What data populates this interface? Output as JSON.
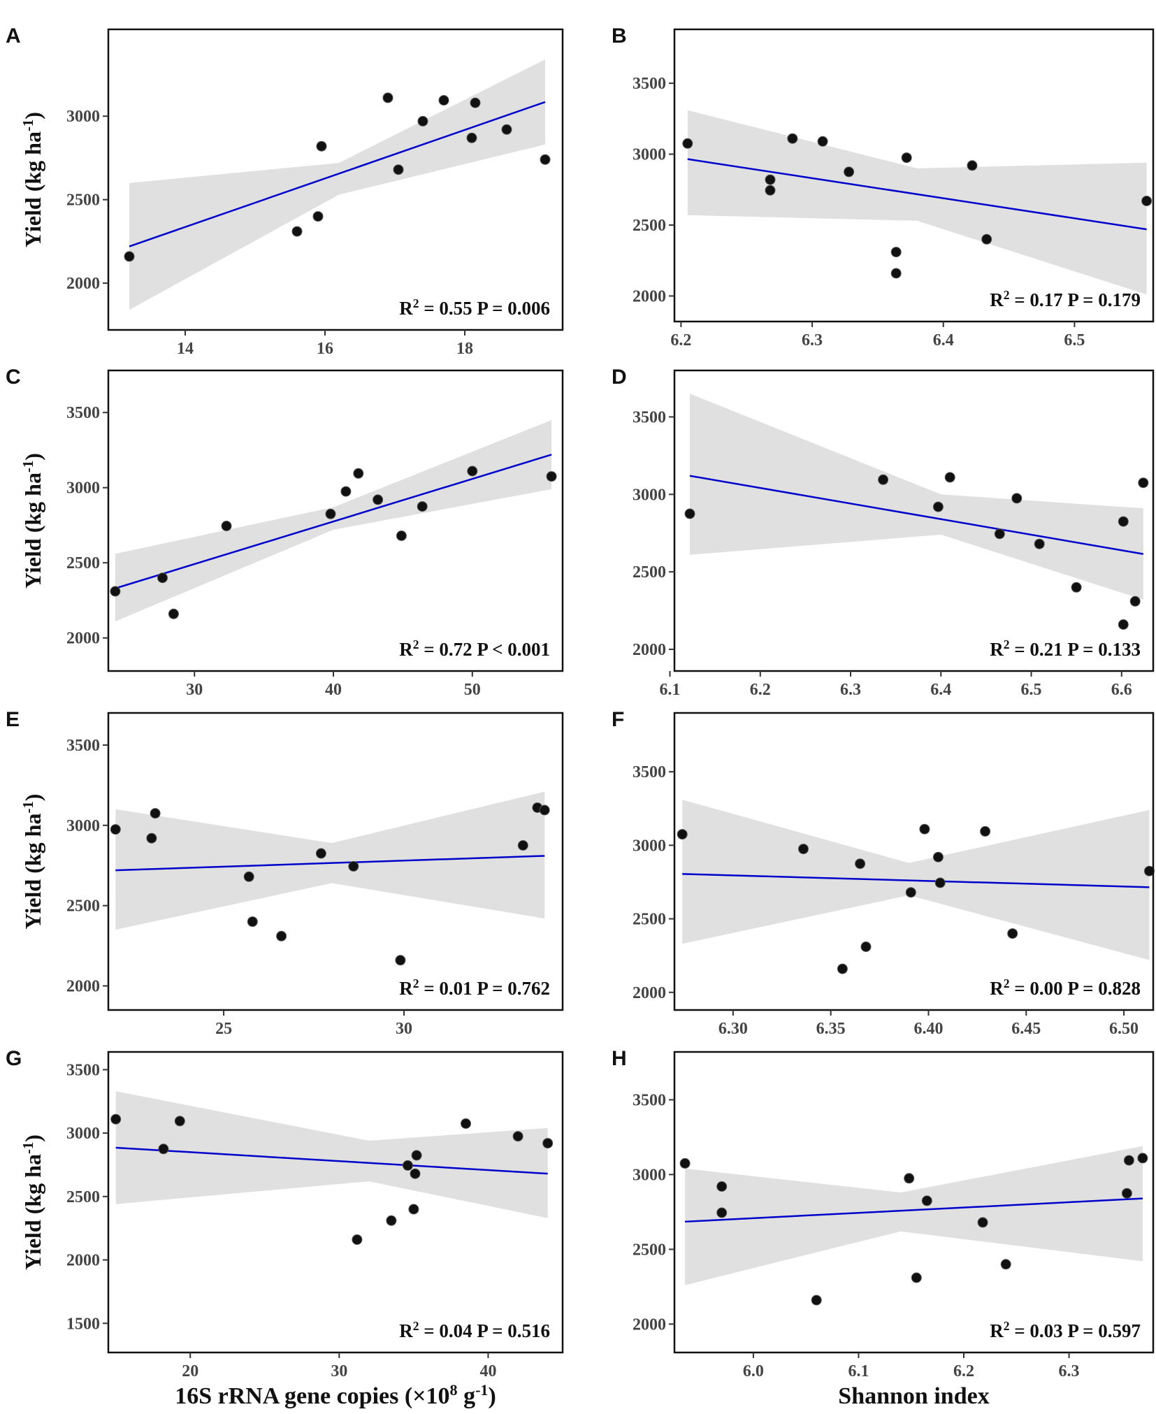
{
  "figure": {
    "panels_letters": [
      "A",
      "B",
      "C",
      "D",
      "E",
      "F",
      "G",
      "H"
    ],
    "y_axis_label": "Yield (kg ha",
    "y_axis_label_sup": "-1",
    "y_axis_label_end": ")",
    "x_axis_label_left": "16S rRNA gene copies (×10",
    "x_axis_label_left_sup": "8",
    "x_axis_label_left_mid": " g",
    "x_axis_label_left_sup2": "-1",
    "x_axis_label_left_end": ")",
    "x_axis_label_right": "Shannon index"
  },
  "colors": {
    "line": "#0000cc",
    "band": "#e0e0e0",
    "point": "#111111"
  },
  "chart_data": [
    {
      "id": "A",
      "type": "scatter",
      "letter": "A",
      "xlim": [
        12.9,
        19.4
      ],
      "ylim": [
        1720,
        3520
      ],
      "xticks": [
        14,
        16,
        18
      ],
      "xtick_labels": [
        "14",
        "16",
        "18"
      ],
      "yticks": [
        2000,
        2500,
        3000
      ],
      "ytick_labels": [
        "2000",
        "2500",
        "3000"
      ],
      "x": [
        13.2,
        15.6,
        15.9,
        15.95,
        16.9,
        17.05,
        17.4,
        17.7,
        18.1,
        18.15,
        18.6,
        19.15
      ],
      "y": [
        2160,
        2310,
        2400,
        2820,
        3110,
        2680,
        2970,
        3095,
        2870,
        3080,
        2920,
        2740
      ],
      "fit": {
        "x": [
          13.2,
          19.15
        ],
        "y": [
          2220,
          3085
        ]
      },
      "band": {
        "x": [
          13.2,
          16.2,
          19.15
        ],
        "lower": [
          1840,
          2530,
          2830
        ],
        "upper": [
          2600,
          2720,
          3340
        ]
      },
      "stats": {
        "r2_label": "R",
        "r2_sup": "2",
        "r2_value": " = 0.55",
        "p_text": "P = 0.006"
      },
      "show_ylabel": true,
      "xlabel": ""
    },
    {
      "id": "B",
      "type": "scatter",
      "letter": "B",
      "xlim": [
        6.195,
        6.56
      ],
      "ylim": [
        1820,
        3880
      ],
      "xticks": [
        6.2,
        6.3,
        6.4,
        6.5
      ],
      "xtick_labels": [
        "6.2",
        "6.3",
        "6.4",
        "6.5"
      ],
      "yticks": [
        2000,
        2500,
        3000,
        3500
      ],
      "ytick_labels": [
        "2000",
        "2500",
        "3000",
        "3500"
      ],
      "x": [
        6.205,
        6.268,
        6.268,
        6.285,
        6.308,
        6.328,
        6.364,
        6.364,
        6.372,
        6.422,
        6.433,
        6.555
      ],
      "y": [
        3075,
        2820,
        2745,
        3110,
        3090,
        2875,
        2310,
        2160,
        2975,
        2920,
        2400,
        2670
      ],
      "fit": {
        "x": [
          6.205,
          6.555
        ],
        "y": [
          2965,
          2470
        ]
      },
      "band": {
        "x": [
          6.205,
          6.38,
          6.555
        ],
        "lower": [
          2570,
          2530,
          2010
        ],
        "upper": [
          3310,
          2900,
          2940
        ]
      },
      "stats": {
        "r2_label": "R",
        "r2_sup": "2",
        "r2_value": " = 0.17",
        "p_text": "P = 0.179"
      },
      "show_ylabel": false,
      "xlabel": ""
    },
    {
      "id": "C",
      "type": "scatter",
      "letter": "C",
      "xlim": [
        23.8,
        56.5
      ],
      "ylim": [
        1780,
        3780
      ],
      "xticks": [
        30,
        40,
        50
      ],
      "xtick_labels": [
        "30",
        "40",
        "50"
      ],
      "yticks": [
        2000,
        2500,
        3000,
        3500
      ],
      "ytick_labels": [
        "2000",
        "2500",
        "3000",
        "3500"
      ],
      "x": [
        24.3,
        27.7,
        28.5,
        32.3,
        39.8,
        40.9,
        41.8,
        43.2,
        44.9,
        46.4,
        50.0,
        55.7
      ],
      "y": [
        2310,
        2400,
        2160,
        2745,
        2825,
        2975,
        3095,
        2920,
        2680,
        2875,
        3110,
        3075
      ],
      "fit": {
        "x": [
          24.3,
          55.7
        ],
        "y": [
          2330,
          3220
        ]
      },
      "band": {
        "x": [
          24.3,
          40.0,
          55.7
        ],
        "lower": [
          2110,
          2720,
          2990
        ],
        "upper": [
          2560,
          2870,
          3450
        ]
      },
      "stats": {
        "r2_label": "R",
        "r2_sup": "2",
        "r2_value": " = 0.72",
        "p_text": "P < 0.001"
      },
      "show_ylabel": true,
      "xlabel": ""
    },
    {
      "id": "D",
      "type": "scatter",
      "letter": "D",
      "xlim": [
        6.105,
        6.635
      ],
      "ylim": [
        1860,
        3800
      ],
      "xticks": [
        6.1,
        6.2,
        6.3,
        6.4,
        6.5,
        6.6
      ],
      "xtick_labels": [
        "6.1",
        "6.2",
        "6.3",
        "6.4",
        "6.5",
        "6.6"
      ],
      "x": [
        6.122,
        6.336,
        6.397,
        6.41,
        6.465,
        6.484,
        6.509,
        6.55,
        6.602,
        6.602,
        6.615,
        6.624
      ],
      "y": [
        2875,
        3095,
        2920,
        3110,
        2745,
        2975,
        2680,
        2400,
        2825,
        2160,
        2310,
        3075
      ],
      "yticks": [
        2000,
        2500,
        3000,
        3500
      ],
      "ytick_labels": [
        "2000",
        "2500",
        "3000",
        "3500"
      ],
      "fit": {
        "x": [
          6.122,
          6.624
        ],
        "y": [
          3120,
          2615
        ]
      },
      "band": {
        "x": [
          6.122,
          6.4,
          6.624
        ],
        "lower": [
          2610,
          2740,
          2320
        ],
        "upper": [
          3650,
          3000,
          2910
        ]
      },
      "stats": {
        "r2_label": "R",
        "r2_sup": "2",
        "r2_value": " = 0.21",
        "p_text": "P = 0.133"
      },
      "show_ylabel": false,
      "xlabel": ""
    },
    {
      "id": "E",
      "type": "scatter",
      "letter": "E",
      "xlim": [
        21.8,
        34.4
      ],
      "ylim": [
        1850,
        3700
      ],
      "xticks": [
        25,
        30
      ],
      "xtick_labels": [
        "25",
        "30"
      ],
      "yticks": [
        2000,
        2500,
        3000,
        3500
      ],
      "ytick_labels": [
        "2000",
        "2500",
        "3000",
        "3500"
      ],
      "x": [
        22.0,
        23.0,
        23.1,
        25.7,
        25.8,
        26.6,
        27.7,
        28.6,
        29.9,
        33.3,
        33.7,
        33.9
      ],
      "y": [
        2975,
        2920,
        3075,
        2680,
        2400,
        2310,
        2825,
        2745,
        2160,
        2875,
        3110,
        3095
      ],
      "fit": {
        "x": [
          22.0,
          33.9
        ],
        "y": [
          2720,
          2810
        ]
      },
      "band": {
        "x": [
          22.0,
          28.0,
          33.9
        ],
        "lower": [
          2350,
          2640,
          2420
        ],
        "upper": [
          3100,
          2890,
          3210
        ]
      },
      "stats": {
        "r2_label": "R",
        "r2_sup": "2",
        "r2_value": " = 0.01",
        "p_text": "P = 0.762"
      },
      "show_ylabel": true,
      "xlabel": ""
    },
    {
      "id": "F",
      "type": "scatter",
      "letter": "F",
      "xlim": [
        6.27,
        6.515
      ],
      "ylim": [
        1880,
        3900
      ],
      "xticks": [
        6.3,
        6.35,
        6.4,
        6.45,
        6.5
      ],
      "xtick_labels": [
        "6.30",
        "6.35",
        "6.40",
        "6.45",
        "6.50"
      ],
      "yticks": [
        2000,
        2500,
        3000,
        3500
      ],
      "ytick_labels": [
        "2000",
        "2500",
        "3000",
        "3500"
      ],
      "x": [
        6.274,
        6.336,
        6.356,
        6.365,
        6.368,
        6.391,
        6.398,
        6.405,
        6.406,
        6.429,
        6.443,
        6.513
      ],
      "y": [
        3075,
        2975,
        2160,
        2875,
        2310,
        2680,
        3110,
        2920,
        2745,
        3095,
        2400,
        2825
      ],
      "fit": {
        "x": [
          6.274,
          6.513
        ],
        "y": [
          2805,
          2715
        ]
      },
      "band": {
        "x": [
          6.274,
          6.39,
          6.513
        ],
        "lower": [
          2330,
          2660,
          2220
        ],
        "upper": [
          3310,
          2880,
          3240
        ]
      },
      "stats": {
        "r2_label": "R",
        "r2_sup": "2",
        "r2_value": " = 0.00",
        "p_text": "P = 0.828"
      },
      "show_ylabel": false,
      "xlabel": ""
    },
    {
      "id": "G",
      "type": "scatter",
      "letter": "G",
      "xlim": [
        14.5,
        45.0
      ],
      "ylim": [
        1270,
        3640
      ],
      "xticks": [
        20,
        30,
        40
      ],
      "xtick_labels": [
        "20",
        "30",
        "40"
      ],
      "yticks": [
        1500,
        2000,
        2500,
        3000,
        3500
      ],
      "ytick_labels": [
        "1500",
        "2000",
        "2500",
        "3000",
        "3500"
      ],
      "x": [
        15.0,
        18.2,
        19.3,
        31.2,
        33.5,
        34.6,
        35.0,
        35.1,
        35.2,
        38.5,
        42.0,
        44.0
      ],
      "y": [
        3110,
        2875,
        3095,
        2160,
        2310,
        2745,
        2400,
        2680,
        2825,
        3075,
        2975,
        2920
      ],
      "fit": {
        "x": [
          15.0,
          44.0
        ],
        "y": [
          2885,
          2680
        ]
      },
      "band": {
        "x": [
          15.0,
          32.0,
          44.0
        ],
        "lower": [
          2440,
          2620,
          2330
        ],
        "upper": [
          3330,
          2940,
          3040
        ]
      },
      "stats": {
        "r2_label": "R",
        "r2_sup": "2",
        "r2_value": " = 0.04",
        "p_text": "P = 0.516"
      },
      "show_ylabel": true,
      "xlabel": "16S rRNA gene copies (×10^8 g^-1)"
    },
    {
      "id": "H",
      "type": "scatter",
      "letter": "H",
      "xlim": [
        5.925,
        6.38
      ],
      "ylim": [
        1810,
        3820
      ],
      "xticks": [
        6.0,
        6.1,
        6.2,
        6.3
      ],
      "xtick_labels": [
        "6.0",
        "6.1",
        "6.2",
        "6.3"
      ],
      "yticks": [
        2000,
        2500,
        3000,
        3500
      ],
      "ytick_labels": [
        "2000",
        "2500",
        "3000",
        "3500"
      ],
      "x": [
        5.935,
        5.97,
        5.97,
        6.06,
        6.148,
        6.155,
        6.165,
        6.218,
        6.24,
        6.355,
        6.357,
        6.37
      ],
      "y": [
        3075,
        2920,
        2745,
        2160,
        2975,
        2310,
        2825,
        2680,
        2400,
        2875,
        3095,
        3110
      ],
      "fit": {
        "x": [
          5.935,
          6.37
        ],
        "y": [
          2685,
          2840
        ]
      },
      "band": {
        "x": [
          5.935,
          6.14,
          6.37
        ],
        "lower": [
          2260,
          2620,
          2420
        ],
        "upper": [
          3040,
          2880,
          3190
        ]
      },
      "stats": {
        "r2_label": "R",
        "r2_sup": "2",
        "r2_value": " = 0.03",
        "p_text": "P = 0.597"
      },
      "show_ylabel": false,
      "xlabel": "Shannon index"
    }
  ]
}
